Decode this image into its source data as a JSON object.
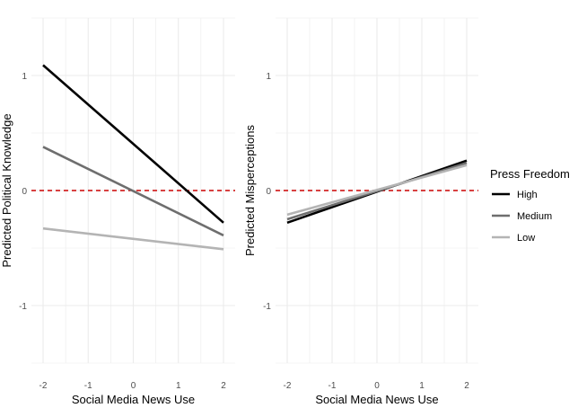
{
  "chart_data": [
    {
      "type": "line",
      "xlabel": "Social Media News Use",
      "ylabel": "Predicted Political Knowledge",
      "xlim": [
        -2,
        2
      ],
      "ylim": [
        -1.5,
        1.5
      ],
      "xticks": [
        "-2",
        "-1",
        "0",
        "1",
        "2"
      ],
      "yticks": [
        "1",
        "0",
        "-1"
      ],
      "grid": true,
      "reference_line": {
        "y": 0,
        "style": "dashed",
        "color": "#cc0000"
      },
      "series": [
        {
          "name": "High",
          "x": [
            -2,
            2
          ],
          "y": [
            1.09,
            -0.28
          ]
        },
        {
          "name": "Medium",
          "x": [
            -2,
            2
          ],
          "y": [
            0.38,
            -0.39
          ]
        },
        {
          "name": "Low",
          "x": [
            -2,
            2
          ],
          "y": [
            -0.33,
            -0.51
          ]
        }
      ]
    },
    {
      "type": "line",
      "xlabel": "Social Media News Use",
      "ylabel": "Predicted Misperceptions",
      "xlim": [
        -2,
        2
      ],
      "ylim": [
        -1.5,
        1.5
      ],
      "xticks": [
        "-2",
        "-1",
        "0",
        "1",
        "2"
      ],
      "yticks": [
        "1",
        "0",
        "-1"
      ],
      "grid": true,
      "reference_line": {
        "y": 0,
        "style": "dashed",
        "color": "#cc0000"
      },
      "series": [
        {
          "name": "High",
          "x": [
            -2,
            2
          ],
          "y": [
            -0.28,
            0.26
          ]
        },
        {
          "name": "Medium",
          "x": [
            -2,
            2
          ],
          "y": [
            -0.25,
            0.24
          ]
        },
        {
          "name": "Low",
          "x": [
            -2,
            2
          ],
          "y": [
            -0.21,
            0.22
          ]
        }
      ]
    }
  ],
  "legend": {
    "title": "Press Freedom",
    "placement": "right",
    "items": [
      {
        "label": "High",
        "color": "#000000"
      },
      {
        "label": "Medium",
        "color": "#6e6e6e"
      },
      {
        "label": "Low",
        "color": "#b4b4b4"
      }
    ]
  },
  "colors": {
    "grid": "#ebebeb",
    "reference": "#cc0000",
    "tick_text": "#4d4d4d"
  }
}
